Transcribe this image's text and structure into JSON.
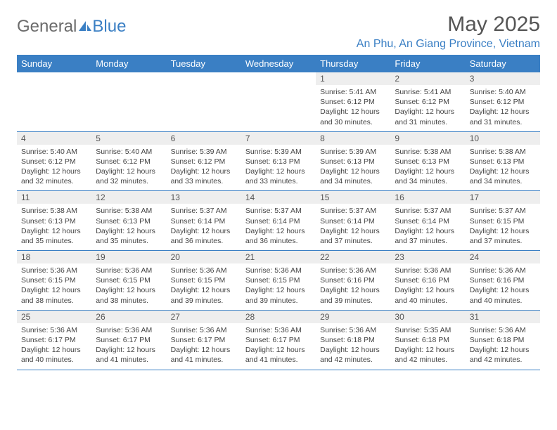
{
  "logo": {
    "text1": "General",
    "text2": "Blue"
  },
  "header": {
    "month_title": "May 2025",
    "location": "An Phu, An Giang Province, Vietnam"
  },
  "colors": {
    "accent": "#3a7fc4",
    "header_bg": "#3a7fc4",
    "header_text": "#ffffff",
    "date_row_bg": "#eeeeee",
    "text": "#444444",
    "logo_gray": "#6b6b6b"
  },
  "day_headers": [
    "Sunday",
    "Monday",
    "Tuesday",
    "Wednesday",
    "Thursday",
    "Friday",
    "Saturday"
  ],
  "first_weekday": 4,
  "num_days": 31,
  "days": {
    "1": {
      "sunrise": "5:41 AM",
      "sunset": "6:12 PM",
      "daylight": "12 hours and 30 minutes."
    },
    "2": {
      "sunrise": "5:41 AM",
      "sunset": "6:12 PM",
      "daylight": "12 hours and 31 minutes."
    },
    "3": {
      "sunrise": "5:40 AM",
      "sunset": "6:12 PM",
      "daylight": "12 hours and 31 minutes."
    },
    "4": {
      "sunrise": "5:40 AM",
      "sunset": "6:12 PM",
      "daylight": "12 hours and 32 minutes."
    },
    "5": {
      "sunrise": "5:40 AM",
      "sunset": "6:12 PM",
      "daylight": "12 hours and 32 minutes."
    },
    "6": {
      "sunrise": "5:39 AM",
      "sunset": "6:12 PM",
      "daylight": "12 hours and 33 minutes."
    },
    "7": {
      "sunrise": "5:39 AM",
      "sunset": "6:13 PM",
      "daylight": "12 hours and 33 minutes."
    },
    "8": {
      "sunrise": "5:39 AM",
      "sunset": "6:13 PM",
      "daylight": "12 hours and 34 minutes."
    },
    "9": {
      "sunrise": "5:38 AM",
      "sunset": "6:13 PM",
      "daylight": "12 hours and 34 minutes."
    },
    "10": {
      "sunrise": "5:38 AM",
      "sunset": "6:13 PM",
      "daylight": "12 hours and 34 minutes."
    },
    "11": {
      "sunrise": "5:38 AM",
      "sunset": "6:13 PM",
      "daylight": "12 hours and 35 minutes."
    },
    "12": {
      "sunrise": "5:38 AM",
      "sunset": "6:13 PM",
      "daylight": "12 hours and 35 minutes."
    },
    "13": {
      "sunrise": "5:37 AM",
      "sunset": "6:14 PM",
      "daylight": "12 hours and 36 minutes."
    },
    "14": {
      "sunrise": "5:37 AM",
      "sunset": "6:14 PM",
      "daylight": "12 hours and 36 minutes."
    },
    "15": {
      "sunrise": "5:37 AM",
      "sunset": "6:14 PM",
      "daylight": "12 hours and 37 minutes."
    },
    "16": {
      "sunrise": "5:37 AM",
      "sunset": "6:14 PM",
      "daylight": "12 hours and 37 minutes."
    },
    "17": {
      "sunrise": "5:37 AM",
      "sunset": "6:15 PM",
      "daylight": "12 hours and 37 minutes."
    },
    "18": {
      "sunrise": "5:36 AM",
      "sunset": "6:15 PM",
      "daylight": "12 hours and 38 minutes."
    },
    "19": {
      "sunrise": "5:36 AM",
      "sunset": "6:15 PM",
      "daylight": "12 hours and 38 minutes."
    },
    "20": {
      "sunrise": "5:36 AM",
      "sunset": "6:15 PM",
      "daylight": "12 hours and 39 minutes."
    },
    "21": {
      "sunrise": "5:36 AM",
      "sunset": "6:15 PM",
      "daylight": "12 hours and 39 minutes."
    },
    "22": {
      "sunrise": "5:36 AM",
      "sunset": "6:16 PM",
      "daylight": "12 hours and 39 minutes."
    },
    "23": {
      "sunrise": "5:36 AM",
      "sunset": "6:16 PM",
      "daylight": "12 hours and 40 minutes."
    },
    "24": {
      "sunrise": "5:36 AM",
      "sunset": "6:16 PM",
      "daylight": "12 hours and 40 minutes."
    },
    "25": {
      "sunrise": "5:36 AM",
      "sunset": "6:17 PM",
      "daylight": "12 hours and 40 minutes."
    },
    "26": {
      "sunrise": "5:36 AM",
      "sunset": "6:17 PM",
      "daylight": "12 hours and 41 minutes."
    },
    "27": {
      "sunrise": "5:36 AM",
      "sunset": "6:17 PM",
      "daylight": "12 hours and 41 minutes."
    },
    "28": {
      "sunrise": "5:36 AM",
      "sunset": "6:17 PM",
      "daylight": "12 hours and 41 minutes."
    },
    "29": {
      "sunrise": "5:36 AM",
      "sunset": "6:18 PM",
      "daylight": "12 hours and 42 minutes."
    },
    "30": {
      "sunrise": "5:35 AM",
      "sunset": "6:18 PM",
      "daylight": "12 hours and 42 minutes."
    },
    "31": {
      "sunrise": "5:36 AM",
      "sunset": "6:18 PM",
      "daylight": "12 hours and 42 minutes."
    }
  },
  "labels": {
    "sunrise_prefix": "Sunrise: ",
    "sunset_prefix": "Sunset: ",
    "daylight_prefix": "Daylight: "
  }
}
